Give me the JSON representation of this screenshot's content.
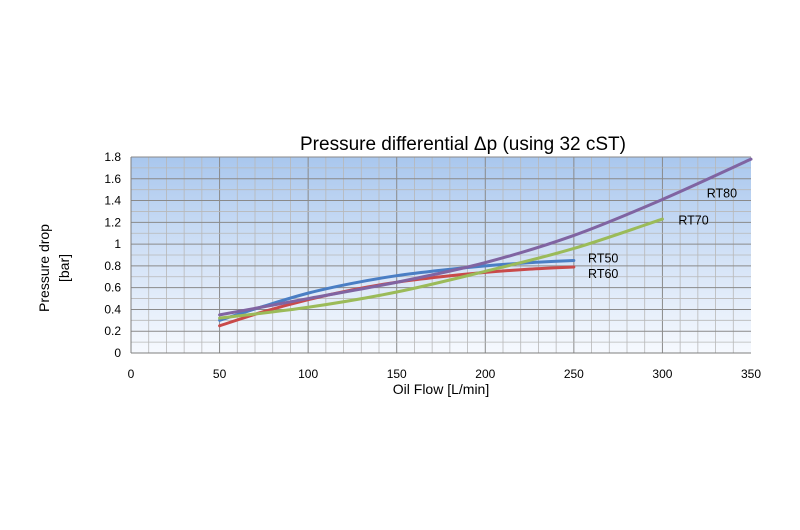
{
  "chart_data": {
    "type": "line",
    "title": "Pressure differential Δp (using 32 cST)",
    "xlabel": "Oil Flow [L/min]",
    "ylabel_lines": [
      "Pressure drop",
      "[bar]"
    ],
    "xlim": [
      0,
      350
    ],
    "ylim": [
      0,
      1.8
    ],
    "x_ticks": [
      "0",
      "50",
      "100",
      "150",
      "200",
      "250",
      "300",
      "350"
    ],
    "y_ticks": [
      "0",
      "0.2",
      "0.4",
      "0.6",
      "0.8",
      "1",
      "1.2",
      "1.4",
      "1.6",
      "1.8"
    ],
    "grid": true,
    "minor_grid_x_step": 10,
    "minor_grid_y_step": 0.1,
    "series": [
      {
        "name": "RT50",
        "color": "#4a7ec4",
        "x": [
          50,
          75,
          100,
          125,
          150,
          175,
          200,
          225,
          250
        ],
        "y": [
          0.3,
          0.43,
          0.55,
          0.64,
          0.71,
          0.76,
          0.8,
          0.83,
          0.85
        ]
      },
      {
        "name": "RT60",
        "color": "#c94a4a",
        "x": [
          50,
          75,
          100,
          125,
          150,
          175,
          200,
          225,
          250
        ],
        "y": [
          0.25,
          0.38,
          0.49,
          0.58,
          0.65,
          0.7,
          0.74,
          0.77,
          0.79
        ]
      },
      {
        "name": "RT70",
        "color": "#9bbb59",
        "x": [
          50,
          100,
          150,
          200,
          250,
          300
        ],
        "y": [
          0.32,
          0.42,
          0.56,
          0.75,
          0.96,
          1.23
        ]
      },
      {
        "name": "RT80",
        "color": "#8064a2",
        "x": [
          50,
          100,
          150,
          200,
          250,
          300,
          350
        ],
        "y": [
          0.35,
          0.5,
          0.65,
          0.83,
          1.08,
          1.41,
          1.78
        ]
      }
    ]
  }
}
